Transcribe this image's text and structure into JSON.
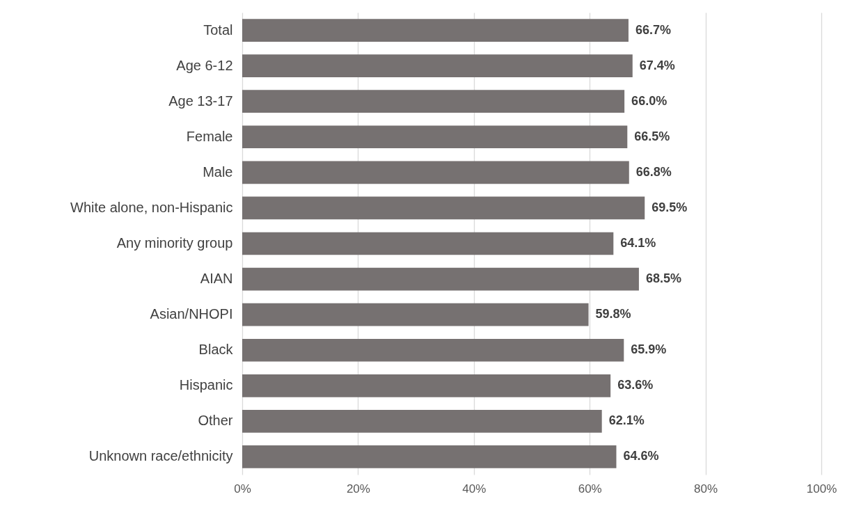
{
  "chart_data": {
    "type": "bar",
    "orientation": "horizontal",
    "categories": [
      "Total",
      "Age 6-12",
      "Age 13-17",
      "Female",
      "Male",
      "White alone, non-Hispanic",
      "Any minority group",
      "AIAN",
      "Asian/NHOPI",
      "Black",
      "Hispanic",
      "Other",
      "Unknown race/ethnicity"
    ],
    "values": [
      66.7,
      67.4,
      66.0,
      66.5,
      66.8,
      69.5,
      64.1,
      68.5,
      59.8,
      65.9,
      63.6,
      62.1,
      64.6
    ],
    "value_labels": [
      "66.7%",
      "67.4%",
      "66.0%",
      "66.5%",
      "66.8%",
      "69.5%",
      "64.1%",
      "68.5%",
      "59.8%",
      "65.9%",
      "63.6%",
      "62.1%",
      "64.6%"
    ],
    "color": "#767171",
    "xlim": [
      0,
      100
    ],
    "xticks": [
      {
        "value": 0,
        "label": "0%"
      },
      {
        "value": 20,
        "label": "20%"
      },
      {
        "value": 40,
        "label": "40%"
      },
      {
        "value": 60,
        "label": "60%"
      },
      {
        "value": 80,
        "label": "80%"
      },
      {
        "value": 100,
        "label": "100%"
      }
    ],
    "grid": "x"
  }
}
